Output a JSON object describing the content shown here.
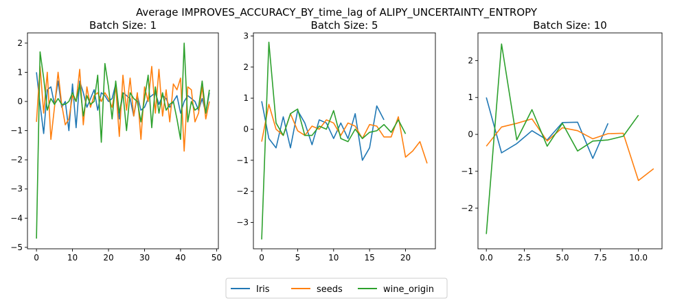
{
  "suptitle": "Average IMPROVES_ACCURACY_BY_time_lag of ALIPY_UNCERTAINTY_ENTROPY",
  "legend": {
    "placement": "bottom-center",
    "entries": [
      {
        "name": "Iris",
        "color": "#1f77b4"
      },
      {
        "name": "seeds",
        "color": "#ff7f0e"
      },
      {
        "name": "wine_origin",
        "color": "#2ca02c"
      }
    ]
  },
  "chart_data": [
    {
      "type": "line",
      "title": "Batch Size: 1",
      "xlim": [
        -2.5,
        50.5
      ],
      "ylim": [
        -5.05,
        2.35
      ],
      "xticks": [
        0,
        10,
        20,
        30,
        40,
        50
      ],
      "yticks": [
        -5,
        -4,
        -3,
        -2,
        -1,
        0,
        1,
        2
      ],
      "series": [
        {
          "name": "Iris",
          "color": "#1f77b4",
          "x": [
            0,
            1,
            2,
            3,
            4,
            5,
            6,
            7,
            8,
            9,
            10,
            11,
            12,
            13,
            14,
            15,
            16,
            17,
            18,
            19,
            20,
            21,
            22,
            23,
            24,
            25,
            26,
            27,
            28,
            29,
            30,
            31,
            32,
            33,
            34,
            35,
            36,
            37,
            38,
            39,
            40,
            41,
            42,
            43,
            44,
            45,
            46,
            47,
            48
          ],
          "y": [
            1.0,
            -0.1,
            -1.1,
            0.4,
            0.5,
            -0.1,
            0.7,
            -0.2,
            0.0,
            -1.0,
            0.6,
            -0.9,
            0.7,
            0.3,
            -0.2,
            0.1,
            0.4,
            -0.3,
            0.3,
            0.2,
            0.0,
            0.1,
            0.6,
            -0.6,
            0.3,
            0.2,
            0.1,
            -0.5,
            0.2,
            -0.3,
            -0.2,
            0.1,
            0.2,
            0.3,
            -0.1,
            0.2,
            0.1,
            -0.2,
            0.0,
            0.2,
            -0.4,
            0.0,
            0.2,
            0.1,
            0.0,
            -0.3,
            0.1,
            -0.4,
            0.3
          ]
        },
        {
          "name": "seeds",
          "color": "#ff7f0e",
          "x": [
            0,
            1,
            2,
            3,
            4,
            5,
            6,
            7,
            8,
            9,
            10,
            11,
            12,
            13,
            14,
            15,
            16,
            17,
            18,
            19,
            20,
            21,
            22,
            23,
            24,
            25,
            26,
            27,
            28,
            29,
            30,
            31,
            32,
            33,
            34,
            35,
            36,
            37,
            38,
            39,
            40,
            41,
            42,
            43,
            44,
            45,
            46,
            47,
            48
          ],
          "y": [
            -0.7,
            1.2,
            -0.4,
            1.0,
            -1.3,
            -0.2,
            1.0,
            -0.1,
            -0.8,
            -0.6,
            0.2,
            0.0,
            1.1,
            -0.8,
            0.5,
            -0.2,
            0.2,
            0.3,
            0.0,
            0.3,
            0.1,
            -0.2,
            0.5,
            -1.2,
            0.9,
            -0.3,
            0.8,
            -0.5,
            0.3,
            -1.3,
            0.5,
            0.0,
            1.2,
            -0.4,
            1.1,
            -0.5,
            0.4,
            -0.7,
            0.6,
            0.4,
            0.8,
            -1.7,
            0.5,
            0.4,
            -0.7,
            -0.4,
            0.5,
            -0.6,
            0.0
          ]
        },
        {
          "name": "wine_origin",
          "color": "#2ca02c",
          "x": [
            0,
            1,
            2,
            3,
            4,
            5,
            6,
            7,
            8,
            9,
            10,
            11,
            12,
            13,
            14,
            15,
            16,
            17,
            18,
            19,
            20,
            21,
            22,
            23,
            24,
            25,
            26,
            27,
            28,
            29,
            30,
            31,
            32,
            33,
            34,
            35,
            36,
            37,
            38,
            39,
            40,
            41,
            42,
            43,
            44,
            45,
            46,
            47,
            48
          ],
          "y": [
            -4.7,
            1.7,
            0.8,
            -0.3,
            0.1,
            -0.1,
            0.1,
            -0.1,
            -0.1,
            0.0,
            0.3,
            0.0,
            0.6,
            -0.5,
            0.2,
            -0.1,
            0.0,
            0.9,
            -1.4,
            1.3,
            0.5,
            -0.6,
            0.7,
            -0.4,
            0.3,
            -1.0,
            0.3,
            0.1,
            0.0,
            -0.7,
            0.1,
            0.9,
            -0.9,
            0.5,
            -0.4,
            0.3,
            -0.3,
            -0.1,
            0.0,
            -0.6,
            -1.3,
            2.0,
            -0.7,
            0.0,
            -0.3,
            -0.2,
            0.7,
            -0.4,
            0.4
          ]
        }
      ]
    },
    {
      "type": "line",
      "title": "Batch Size: 5",
      "xlim": [
        -1.15,
        24.15
      ],
      "ylim": [
        -3.85,
        3.1
      ],
      "xticks": [
        0,
        5,
        10,
        15,
        20
      ],
      "yticks": [
        -3,
        -2,
        -1,
        0,
        1,
        2,
        3
      ],
      "series": [
        {
          "name": "Iris",
          "color": "#1f77b4",
          "x": [
            0,
            1,
            2,
            3,
            4,
            5,
            6,
            7,
            8,
            9,
            10,
            11,
            12,
            13,
            14,
            15,
            16,
            17
          ],
          "y": [
            0.9,
            -0.3,
            -0.6,
            0.4,
            -0.6,
            0.6,
            0.2,
            -0.5,
            0.3,
            0.2,
            -0.3,
            0.2,
            -0.3,
            0.5,
            -1.0,
            -0.6,
            0.75,
            0.3
          ]
        },
        {
          "name": "seeds",
          "color": "#ff7f0e",
          "x": [
            0,
            1,
            2,
            3,
            4,
            5,
            6,
            7,
            8,
            9,
            10,
            11,
            12,
            13,
            14,
            15,
            16,
            17,
            18,
            19,
            20,
            21,
            22,
            23
          ],
          "y": [
            -0.4,
            0.8,
            0.0,
            -0.2,
            0.5,
            -0.05,
            -0.2,
            0.1,
            0.0,
            0.3,
            0.2,
            -0.2,
            0.2,
            0.1,
            -0.3,
            0.15,
            0.1,
            -0.25,
            -0.25,
            0.4,
            -0.9,
            -0.7,
            -0.4,
            -1.1
          ]
        },
        {
          "name": "wine_origin",
          "color": "#2ca02c",
          "x": [
            0,
            1,
            2,
            3,
            4,
            5,
            6,
            7,
            8,
            9,
            10,
            11,
            12,
            13,
            14,
            15,
            16,
            17,
            18,
            19,
            20
          ],
          "y": [
            -3.55,
            2.8,
            0.2,
            -0.2,
            0.5,
            0.65,
            -0.2,
            -0.2,
            0.1,
            0.0,
            0.6,
            -0.3,
            -0.4,
            0.0,
            -0.3,
            -0.1,
            -0.05,
            0.15,
            -0.1,
            0.3,
            -0.15
          ]
        }
      ]
    },
    {
      "type": "line",
      "title": "Batch Size: 10",
      "xlim": [
        -0.55,
        11.55
      ],
      "ylim": [
        -3.1,
        2.75
      ],
      "xticks": [
        0.0,
        2.5,
        5.0,
        7.5,
        10.0
      ],
      "yticks": [
        -2,
        -1,
        0,
        1,
        2
      ],
      "series": [
        {
          "name": "Iris",
          "color": "#1f77b4",
          "x": [
            0,
            1,
            2,
            3,
            4,
            5,
            6,
            7,
            8
          ],
          "y": [
            1.0,
            -0.5,
            -0.25,
            0.1,
            -0.15,
            0.32,
            0.33,
            -0.65,
            0.3
          ]
        },
        {
          "name": "seeds",
          "color": "#ff7f0e",
          "x": [
            0,
            1,
            2,
            3,
            4,
            5,
            6,
            7,
            8,
            9,
            10,
            11
          ],
          "y": [
            -0.32,
            0.2,
            0.3,
            0.42,
            -0.18,
            0.18,
            0.1,
            -0.12,
            0.02,
            0.03,
            -1.25,
            -0.93
          ]
        },
        {
          "name": "wine_origin",
          "color": "#2ca02c",
          "x": [
            0,
            1,
            2,
            3,
            4,
            5,
            6,
            7,
            8,
            9,
            10
          ],
          "y": [
            -2.7,
            2.45,
            -0.15,
            0.67,
            -0.32,
            0.3,
            -0.45,
            -0.18,
            -0.15,
            -0.05,
            0.52
          ]
        }
      ]
    }
  ]
}
